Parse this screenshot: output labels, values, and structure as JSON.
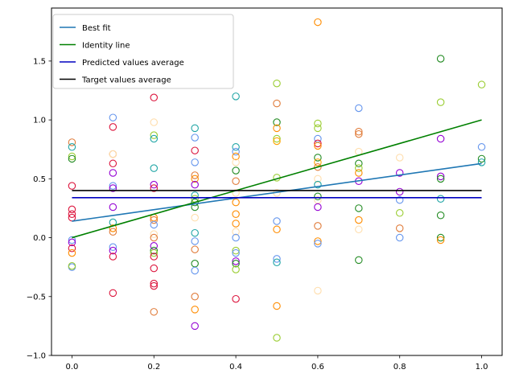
{
  "chart_data": {
    "type": "scatter",
    "xlim": [
      -0.05,
      1.05
    ],
    "ylim": [
      -1.0,
      1.95
    ],
    "xticks": [
      0.0,
      0.2,
      0.4,
      0.6,
      0.8,
      1.0
    ],
    "xtick_labels": [
      "0.0",
      "0.2",
      "0.4",
      "0.6",
      "0.8",
      "1.0"
    ],
    "yticks": [
      -1.0,
      -0.5,
      0.0,
      0.5,
      1.0,
      1.5
    ],
    "ytick_labels": [
      "−1.0",
      "−0.5",
      "0.0",
      "0.5",
      "1.0",
      "1.5"
    ],
    "grid": false,
    "legend_position": "top-left",
    "lines": [
      {
        "name": "Best fit",
        "color": "#1f77b4",
        "x": [
          0.0,
          1.0
        ],
        "y": [
          0.14,
          0.63
        ]
      },
      {
        "name": "Identity line",
        "color": "#008000",
        "x": [
          0.0,
          1.0
        ],
        "y": [
          0.0,
          1.0
        ]
      },
      {
        "name": "Predicted values average",
        "color": "#0000bf",
        "x": [
          0.0,
          1.0
        ],
        "y": [
          0.34,
          0.34
        ]
      },
      {
        "name": "Target values average",
        "color": "#000000",
        "x": [
          0.0,
          1.0
        ],
        "y": [
          0.4,
          0.4
        ]
      }
    ],
    "points": [
      {
        "x": 0.0,
        "y": 0.81,
        "color": "#e07b39"
      },
      {
        "x": 0.0,
        "y": 0.77,
        "color": "#1fa5a5"
      },
      {
        "x": 0.0,
        "y": 0.69,
        "color": "#9acd32"
      },
      {
        "x": 0.0,
        "y": 0.67,
        "color": "#228b22"
      },
      {
        "x": 0.0,
        "y": 0.44,
        "color": "#dc143c"
      },
      {
        "x": 0.0,
        "y": 0.24,
        "color": "#dc143c"
      },
      {
        "x": 0.0,
        "y": 0.2,
        "color": "#dc143c"
      },
      {
        "x": 0.0,
        "y": 0.17,
        "color": "#dc143c"
      },
      {
        "x": 0.0,
        "y": -0.02,
        "color": "#6495ed"
      },
      {
        "x": 0.0,
        "y": -0.04,
        "color": "#9400d3"
      },
      {
        "x": 0.0,
        "y": -0.09,
        "color": "#dc143c"
      },
      {
        "x": 0.0,
        "y": -0.13,
        "color": "#ff8c00"
      },
      {
        "x": 0.0,
        "y": -0.25,
        "color": "#6495ed"
      },
      {
        "x": 0.0,
        "y": -0.24,
        "color": "#9acd32"
      },
      {
        "x": 0.1,
        "y": 1.02,
        "color": "#6495ed"
      },
      {
        "x": 0.1,
        "y": 0.94,
        "color": "#dc143c"
      },
      {
        "x": 0.1,
        "y": 0.71,
        "color": "#e07b39"
      },
      {
        "x": 0.1,
        "y": 0.71,
        "color": "#ffdead"
      },
      {
        "x": 0.1,
        "y": 0.63,
        "color": "#dc143c"
      },
      {
        "x": 0.1,
        "y": 0.55,
        "color": "#9400d3"
      },
      {
        "x": 0.1,
        "y": 0.44,
        "color": "#6495ed"
      },
      {
        "x": 0.1,
        "y": 0.42,
        "color": "#9400d3"
      },
      {
        "x": 0.1,
        "y": 0.26,
        "color": "#9400d3"
      },
      {
        "x": 0.1,
        "y": 0.13,
        "color": "#1fa5a5"
      },
      {
        "x": 0.1,
        "y": 0.08,
        "color": "#ff8c00"
      },
      {
        "x": 0.1,
        "y": 0.05,
        "color": "#e07b39"
      },
      {
        "x": 0.1,
        "y": -0.08,
        "color": "#6495ed"
      },
      {
        "x": 0.1,
        "y": -0.11,
        "color": "#9400d3"
      },
      {
        "x": 0.1,
        "y": -0.16,
        "color": "#dc143c"
      },
      {
        "x": 0.1,
        "y": -0.47,
        "color": "#dc143c"
      },
      {
        "x": 0.2,
        "y": 1.19,
        "color": "#dc143c"
      },
      {
        "x": 0.2,
        "y": 0.98,
        "color": "#ffdead"
      },
      {
        "x": 0.2,
        "y": 0.87,
        "color": "#9acd32"
      },
      {
        "x": 0.2,
        "y": 0.84,
        "color": "#1fa5a5"
      },
      {
        "x": 0.2,
        "y": 0.59,
        "color": "#1fa5a5"
      },
      {
        "x": 0.2,
        "y": 0.45,
        "color": "#9400d3"
      },
      {
        "x": 0.2,
        "y": 0.42,
        "color": "#dc143c"
      },
      {
        "x": 0.2,
        "y": 0.17,
        "color": "#ff8c00"
      },
      {
        "x": 0.2,
        "y": 0.15,
        "color": "#e07b39"
      },
      {
        "x": 0.2,
        "y": 0.11,
        "color": "#6495ed"
      },
      {
        "x": 0.2,
        "y": 0.03,
        "color": "#ffdead"
      },
      {
        "x": 0.2,
        "y": 0.0,
        "color": "#e07b39"
      },
      {
        "x": 0.2,
        "y": -0.07,
        "color": "#9400d3"
      },
      {
        "x": 0.2,
        "y": -0.11,
        "color": "#228b22"
      },
      {
        "x": 0.2,
        "y": -0.13,
        "color": "#9acd32"
      },
      {
        "x": 0.2,
        "y": -0.16,
        "color": "#dc143c"
      },
      {
        "x": 0.2,
        "y": -0.26,
        "color": "#dc143c"
      },
      {
        "x": 0.2,
        "y": -0.39,
        "color": "#dc143c"
      },
      {
        "x": 0.2,
        "y": -0.41,
        "color": "#dc143c"
      },
      {
        "x": 0.2,
        "y": -0.63,
        "color": "#e07b39"
      },
      {
        "x": 0.3,
        "y": 0.93,
        "color": "#1fa5a5"
      },
      {
        "x": 0.3,
        "y": 0.85,
        "color": "#6495ed"
      },
      {
        "x": 0.3,
        "y": 0.74,
        "color": "#dc143c"
      },
      {
        "x": 0.3,
        "y": 0.64,
        "color": "#6495ed"
      },
      {
        "x": 0.3,
        "y": 0.53,
        "color": "#e07b39"
      },
      {
        "x": 0.3,
        "y": 0.5,
        "color": "#ff8c00"
      },
      {
        "x": 0.3,
        "y": 0.45,
        "color": "#9400d3"
      },
      {
        "x": 0.3,
        "y": 0.36,
        "color": "#1fa5a5"
      },
      {
        "x": 0.3,
        "y": 0.33,
        "color": "#9acd32"
      },
      {
        "x": 0.3,
        "y": 0.3,
        "color": "#228b22"
      },
      {
        "x": 0.3,
        "y": 0.26,
        "color": "#228b22"
      },
      {
        "x": 0.3,
        "y": 0.17,
        "color": "#ffdead"
      },
      {
        "x": 0.3,
        "y": 0.04,
        "color": "#1fa5a5"
      },
      {
        "x": 0.3,
        "y": -0.03,
        "color": "#6495ed"
      },
      {
        "x": 0.3,
        "y": -0.1,
        "color": "#e07b39"
      },
      {
        "x": 0.3,
        "y": -0.22,
        "color": "#228b22"
      },
      {
        "x": 0.3,
        "y": -0.28,
        "color": "#6495ed"
      },
      {
        "x": 0.3,
        "y": -0.5,
        "color": "#e07b39"
      },
      {
        "x": 0.3,
        "y": -0.61,
        "color": "#ff8c00"
      },
      {
        "x": 0.3,
        "y": -0.75,
        "color": "#9400d3"
      },
      {
        "x": 0.4,
        "y": 1.2,
        "color": "#1fa5a5"
      },
      {
        "x": 0.4,
        "y": 0.77,
        "color": "#1fa5a5"
      },
      {
        "x": 0.4,
        "y": 0.73,
        "color": "#6495ed"
      },
      {
        "x": 0.4,
        "y": 0.69,
        "color": "#ff8c00"
      },
      {
        "x": 0.4,
        "y": 0.64,
        "color": "#ffdead"
      },
      {
        "x": 0.4,
        "y": 0.57,
        "color": "#228b22"
      },
      {
        "x": 0.4,
        "y": 0.48,
        "color": "#e07b39"
      },
      {
        "x": 0.4,
        "y": 0.38,
        "color": "#ffdead"
      },
      {
        "x": 0.4,
        "y": 0.3,
        "color": "#ff8c00"
      },
      {
        "x": 0.4,
        "y": 0.2,
        "color": "#ff8c00"
      },
      {
        "x": 0.4,
        "y": 0.12,
        "color": "#ff8c00"
      },
      {
        "x": 0.4,
        "y": 0.05,
        "color": "#ffdead"
      },
      {
        "x": 0.4,
        "y": 0.0,
        "color": "#6495ed"
      },
      {
        "x": 0.4,
        "y": -0.11,
        "color": "#9acd32"
      },
      {
        "x": 0.4,
        "y": -0.13,
        "color": "#6495ed"
      },
      {
        "x": 0.4,
        "y": -0.2,
        "color": "#9400d3"
      },
      {
        "x": 0.4,
        "y": -0.22,
        "color": "#228b22"
      },
      {
        "x": 0.4,
        "y": -0.27,
        "color": "#9acd32"
      },
      {
        "x": 0.4,
        "y": -0.52,
        "color": "#dc143c"
      },
      {
        "x": 0.5,
        "y": 1.31,
        "color": "#9acd32"
      },
      {
        "x": 0.5,
        "y": 1.14,
        "color": "#e07b39"
      },
      {
        "x": 0.5,
        "y": 0.98,
        "color": "#228b22"
      },
      {
        "x": 0.5,
        "y": 0.93,
        "color": "#ff8c00"
      },
      {
        "x": 0.5,
        "y": 0.84,
        "color": "#9acd32"
      },
      {
        "x": 0.5,
        "y": 0.82,
        "color": "#ffa500"
      },
      {
        "x": 0.5,
        "y": 0.51,
        "color": "#9acd32"
      },
      {
        "x": 0.5,
        "y": 0.38,
        "color": "#ffdead"
      },
      {
        "x": 0.5,
        "y": 0.14,
        "color": "#6495ed"
      },
      {
        "x": 0.5,
        "y": 0.07,
        "color": "#ff8c00"
      },
      {
        "x": 0.5,
        "y": -0.18,
        "color": "#6495ed"
      },
      {
        "x": 0.5,
        "y": -0.21,
        "color": "#1fa5a5"
      },
      {
        "x": 0.5,
        "y": -0.58,
        "color": "#ff8c00"
      },
      {
        "x": 0.5,
        "y": -0.85,
        "color": "#9acd32"
      },
      {
        "x": 0.6,
        "y": 1.83,
        "color": "#ff8c00"
      },
      {
        "x": 0.6,
        "y": 0.97,
        "color": "#9acd32"
      },
      {
        "x": 0.6,
        "y": 0.93,
        "color": "#9acd32"
      },
      {
        "x": 0.6,
        "y": 0.84,
        "color": "#6495ed"
      },
      {
        "x": 0.6,
        "y": 0.8,
        "color": "#dc143c"
      },
      {
        "x": 0.6,
        "y": 0.78,
        "color": "#ff8c00"
      },
      {
        "x": 0.6,
        "y": 0.68,
        "color": "#228b22"
      },
      {
        "x": 0.6,
        "y": 0.64,
        "color": "#ffa500"
      },
      {
        "x": 0.6,
        "y": 0.6,
        "color": "#e07b39"
      },
      {
        "x": 0.6,
        "y": 0.5,
        "color": "#ffdead"
      },
      {
        "x": 0.6,
        "y": 0.45,
        "color": "#1fa5a5"
      },
      {
        "x": 0.6,
        "y": 0.35,
        "color": "#228b22"
      },
      {
        "x": 0.6,
        "y": 0.32,
        "color": "#ffdead"
      },
      {
        "x": 0.6,
        "y": 0.26,
        "color": "#9400d3"
      },
      {
        "x": 0.6,
        "y": 0.1,
        "color": "#e07b39"
      },
      {
        "x": 0.6,
        "y": -0.03,
        "color": "#ff8c00"
      },
      {
        "x": 0.6,
        "y": -0.05,
        "color": "#6495ed"
      },
      {
        "x": 0.6,
        "y": -0.45,
        "color": "#ffdead"
      },
      {
        "x": 0.7,
        "y": 1.1,
        "color": "#6495ed"
      },
      {
        "x": 0.7,
        "y": 0.9,
        "color": "#e07b39"
      },
      {
        "x": 0.7,
        "y": 0.88,
        "color": "#e07b39"
      },
      {
        "x": 0.7,
        "y": 0.73,
        "color": "#ffdead"
      },
      {
        "x": 0.7,
        "y": 0.63,
        "color": "#228b22"
      },
      {
        "x": 0.7,
        "y": 0.59,
        "color": "#9acd32"
      },
      {
        "x": 0.7,
        "y": 0.55,
        "color": "#ff8c00"
      },
      {
        "x": 0.7,
        "y": 0.48,
        "color": "#9400d3"
      },
      {
        "x": 0.7,
        "y": 0.25,
        "color": "#228b22"
      },
      {
        "x": 0.7,
        "y": 0.15,
        "color": "#ff8c00"
      },
      {
        "x": 0.7,
        "y": 0.07,
        "color": "#ffdead"
      },
      {
        "x": 0.7,
        "y": -0.19,
        "color": "#228b22"
      },
      {
        "x": 0.8,
        "y": 0.68,
        "color": "#ffdead"
      },
      {
        "x": 0.8,
        "y": 0.55,
        "color": "#9400d3"
      },
      {
        "x": 0.8,
        "y": 0.39,
        "color": "#9400d3"
      },
      {
        "x": 0.8,
        "y": 0.32,
        "color": "#6495ed"
      },
      {
        "x": 0.8,
        "y": 0.21,
        "color": "#9acd32"
      },
      {
        "x": 0.8,
        "y": 0.08,
        "color": "#e07b39"
      },
      {
        "x": 0.8,
        "y": 0.0,
        "color": "#6495ed"
      },
      {
        "x": 0.9,
        "y": 1.52,
        "color": "#228b22"
      },
      {
        "x": 0.9,
        "y": 1.15,
        "color": "#9acd32"
      },
      {
        "x": 0.9,
        "y": 0.84,
        "color": "#9400d3"
      },
      {
        "x": 0.9,
        "y": 0.52,
        "color": "#9400d3"
      },
      {
        "x": 0.9,
        "y": 0.5,
        "color": "#228b22"
      },
      {
        "x": 0.9,
        "y": 0.33,
        "color": "#1fa5a5"
      },
      {
        "x": 0.9,
        "y": 0.19,
        "color": "#228b22"
      },
      {
        "x": 0.9,
        "y": 0.0,
        "color": "#228b22"
      },
      {
        "x": 0.9,
        "y": -0.02,
        "color": "#ff8c00"
      },
      {
        "x": 1.0,
        "y": 1.3,
        "color": "#9acd32"
      },
      {
        "x": 1.0,
        "y": 0.77,
        "color": "#6495ed"
      },
      {
        "x": 1.0,
        "y": 0.67,
        "color": "#228b22"
      },
      {
        "x": 1.0,
        "y": 0.64,
        "color": "#1fa5a5"
      }
    ]
  }
}
